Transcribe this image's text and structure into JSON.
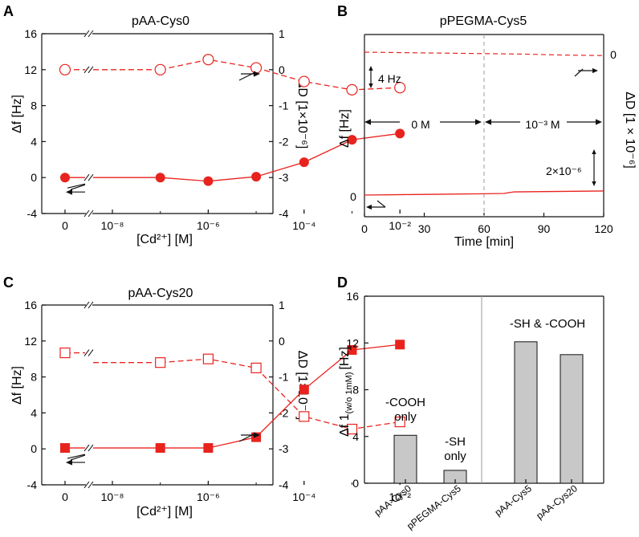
{
  "colors": {
    "red": "#e8231e",
    "axis": "#111111",
    "bar": "#c8c8c8",
    "gray": "#999999"
  },
  "panels": {
    "A": {
      "letter": "A",
      "title": "pAA-Cys0",
      "ylabel_left": "Δf [Hz]",
      "ylabel_right": "ΔD [1×10⁻⁶]",
      "xlabel": "[Cd²⁺] [M]"
    },
    "B": {
      "letter": "B",
      "title": "pPEGMA-Cys5",
      "ylabel_left": "Δf [Hz]",
      "ylabel_right": "ΔD [1 × 10⁻⁶]",
      "xlabel": "Time [min]",
      "scale_freq": "4 Hz",
      "scale_diss": "2×10⁻⁶",
      "period1": "0 M",
      "period2": "10⁻³ M",
      "zero_left": "0",
      "zero_right": "0"
    },
    "C": {
      "letter": "C",
      "title": "pAA-Cys20",
      "ylabel_left": "Δf [Hz]",
      "ylabel_right": "ΔD [1×10⁻⁶]",
      "xlabel": "[Cd²⁺] [M]"
    },
    "D": {
      "letter": "D",
      "ylabel": "Δf 1(w/o 1mM) [Hz]",
      "ylabel_main": "Δf 1",
      "ylabel_sub": "(w/o 1mM)",
      "ylabel_unit": "[Hz]",
      "ann1": [
        "-COOH",
        "only"
      ],
      "ann2": [
        "-SH",
        "only"
      ],
      "ann3": "-SH & -COOH"
    }
  },
  "chart_data": [
    {
      "panel": "A",
      "type": "line",
      "title": "pAA-Cys0",
      "xlabel": "[Cd²⁺] [M]",
      "ylabel": "Δf [Hz]",
      "y2label": "ΔD [1×10⁻⁶]",
      "x_ticks": [
        "0",
        "10⁻⁸",
        "10⁻⁶",
        "10⁻⁴",
        "10⁻²"
      ],
      "ylim": [
        -4,
        16
      ],
      "yticks": [
        -4,
        0,
        4,
        8,
        12,
        16
      ],
      "y2lim": [
        -4,
        1
      ],
      "y2ticks": [
        -4,
        -3,
        -2,
        -1,
        0,
        1
      ],
      "series": [
        {
          "name": "Δf",
          "axis": "left",
          "marker": "filled-circle",
          "line": "solid",
          "x_log": [
            null,
            -7,
            -6,
            -5,
            -4,
            -3,
            -2
          ],
          "values": [
            0,
            0,
            -0.4,
            0.1,
            1.7,
            4.2,
            4.9
          ]
        },
        {
          "name": "ΔD",
          "axis": "right",
          "marker": "open-circle",
          "line": "dashed",
          "x_log": [
            null,
            -7,
            -6,
            -5,
            -4,
            -3,
            -2
          ],
          "values": [
            0,
            0,
            0.28,
            0.05,
            -0.33,
            -0.56,
            -0.5
          ]
        }
      ]
    },
    {
      "panel": "B",
      "type": "line",
      "title": "pPEGMA-Cys5",
      "xlabel": "Time [min]",
      "ylabel": "Δf [Hz]",
      "y2label": "ΔD [1 × 10⁻⁶]",
      "xlim": [
        0,
        120
      ],
      "xticks": [
        0,
        30,
        60,
        90,
        120
      ],
      "divider_x": 60,
      "series": [
        {
          "name": "Δf",
          "axis": "left",
          "line": "solid",
          "x": [
            0,
            20,
            40,
            60,
            70,
            75,
            90,
            105,
            120
          ],
          "values": [
            0,
            0.15,
            0.3,
            0.45,
            0.55,
            1.1,
            1.2,
            1.3,
            1.4
          ]
        },
        {
          "name": "ΔD",
          "axis": "right",
          "line": "dashed",
          "x": [
            0,
            20,
            40,
            60,
            80,
            100,
            120
          ],
          "values": [
            0,
            -0.02,
            -0.04,
            -0.06,
            -0.08,
            -0.12,
            -0.14
          ]
        }
      ]
    },
    {
      "panel": "C",
      "type": "line",
      "title": "pAA-Cys20",
      "xlabel": "[Cd²⁺] [M]",
      "ylabel": "Δf [Hz]",
      "y2label": "ΔD [1×10⁻⁶]",
      "x_ticks": [
        "0",
        "10⁻⁸",
        "10⁻⁶",
        "10⁻⁴",
        "10⁻²"
      ],
      "ylim": [
        -4,
        16
      ],
      "yticks": [
        -4,
        0,
        4,
        8,
        12,
        16
      ],
      "y2lim": [
        -4,
        1
      ],
      "y2ticks": [
        -4,
        -3,
        -2,
        -1,
        0,
        1
      ],
      "series": [
        {
          "name": "Δf",
          "axis": "left",
          "marker": "filled-square",
          "line": "solid",
          "x_log": [
            null,
            -7,
            -6,
            -5,
            -4,
            -3,
            -2
          ],
          "values": [
            0.1,
            0.1,
            0.1,
            1.3,
            6.6,
            11,
            11.6
          ]
        },
        {
          "name": "ΔD",
          "axis": "right",
          "marker": "open-square",
          "line": "dashed",
          "x_log": [
            null,
            -7,
            -6,
            -5,
            -4,
            -3,
            -2
          ],
          "values": [
            -0.33,
            -0.6,
            -0.5,
            -0.75,
            -2.1,
            -2.45,
            -2.25
          ]
        }
      ]
    },
    {
      "panel": "D",
      "type": "bar",
      "categories": [
        "pAA-Cys0",
        "pPEGMA-Cys5",
        "pAA-Cys5",
        "pAA-Cys20"
      ],
      "values": [
        4.1,
        1.1,
        12.1,
        11
      ],
      "ylabel": "Δf 1(w/o 1mM) [Hz]",
      "ylim": [
        0,
        16
      ],
      "yticks": [
        0,
        4,
        8,
        12,
        16
      ]
    }
  ]
}
